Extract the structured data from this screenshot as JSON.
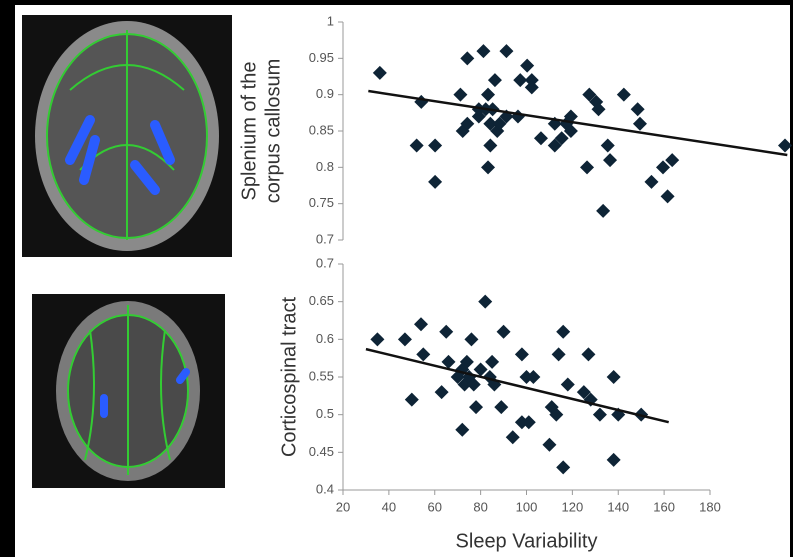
{
  "chart_data": [
    {
      "type": "scatter",
      "ylabel": [
        "Splenium of the",
        "corpus callosum"
      ],
      "color": "#0e2436",
      "xlim": [
        20,
        212
      ],
      "ylim": [
        0.7,
        1
      ],
      "yticks": [
        0.7,
        0.75,
        0.8,
        0.85,
        0.9,
        0.95,
        1
      ],
      "x": [
        36,
        54,
        52,
        60,
        60,
        71,
        72,
        74,
        74,
        79,
        79,
        81,
        82,
        83,
        84,
        83,
        84,
        85,
        86,
        87,
        88,
        91,
        91,
        96,
        97,
        100,
        102,
        102,
        106,
        112,
        112,
        115,
        117,
        119,
        119,
        126,
        127,
        130,
        131,
        133,
        135,
        136,
        142,
        148,
        149,
        154,
        159,
        161,
        163,
        212
      ],
      "values": [
        0.93,
        0.89,
        0.83,
        0.83,
        0.78,
        0.9,
        0.85,
        0.86,
        0.95,
        0.87,
        0.88,
        0.96,
        0.88,
        0.9,
        0.86,
        0.8,
        0.83,
        0.88,
        0.92,
        0.85,
        0.86,
        0.96,
        0.87,
        0.87,
        0.92,
        0.94,
        0.92,
        0.91,
        0.84,
        0.83,
        0.86,
        0.84,
        0.86,
        0.85,
        0.87,
        0.8,
        0.9,
        0.89,
        0.88,
        0.74,
        0.83,
        0.81,
        0.9,
        0.88,
        0.86,
        0.78,
        0.8,
        0.76,
        0.81,
        0.83
      ],
      "trendline": {
        "x": [
          31,
          213
        ],
        "values": [
          0.905,
          0.817
        ]
      }
    },
    {
      "type": "scatter",
      "ylabel": [
        "Corticospinal tract"
      ],
      "xlabel": "Sleep Variability",
      "color": "#0e2436",
      "xlim": [
        20,
        180
      ],
      "xticks": [
        20,
        40,
        60,
        80,
        100,
        120,
        140,
        160,
        180
      ],
      "ylim": [
        0.4,
        0.7
      ],
      "yticks": [
        0.4,
        0.45,
        0.5,
        0.55,
        0.6,
        0.65,
        0.7
      ],
      "x": [
        35,
        47,
        50,
        54,
        55,
        63,
        65,
        66,
        70,
        72,
        72,
        73,
        74,
        75,
        76,
        77,
        78,
        80,
        82,
        84,
        85,
        86,
        89,
        90,
        94,
        98,
        98,
        100,
        101,
        103,
        110,
        111,
        113,
        114,
        116,
        116,
        118,
        125,
        127,
        128,
        132,
        138,
        138,
        140,
        150
      ],
      "values": [
        0.6,
        0.6,
        0.52,
        0.62,
        0.58,
        0.53,
        0.61,
        0.57,
        0.55,
        0.48,
        0.56,
        0.54,
        0.57,
        0.55,
        0.6,
        0.54,
        0.51,
        0.56,
        0.65,
        0.55,
        0.57,
        0.54,
        0.51,
        0.61,
        0.47,
        0.58,
        0.49,
        0.55,
        0.49,
        0.55,
        0.46,
        0.51,
        0.5,
        0.58,
        0.43,
        0.61,
        0.54,
        0.53,
        0.58,
        0.52,
        0.5,
        0.55,
        0.44,
        0.5,
        0.5
      ],
      "trendline": {
        "x": [
          30,
          162
        ],
        "values": [
          0.587,
          0.49
        ]
      }
    }
  ]
}
